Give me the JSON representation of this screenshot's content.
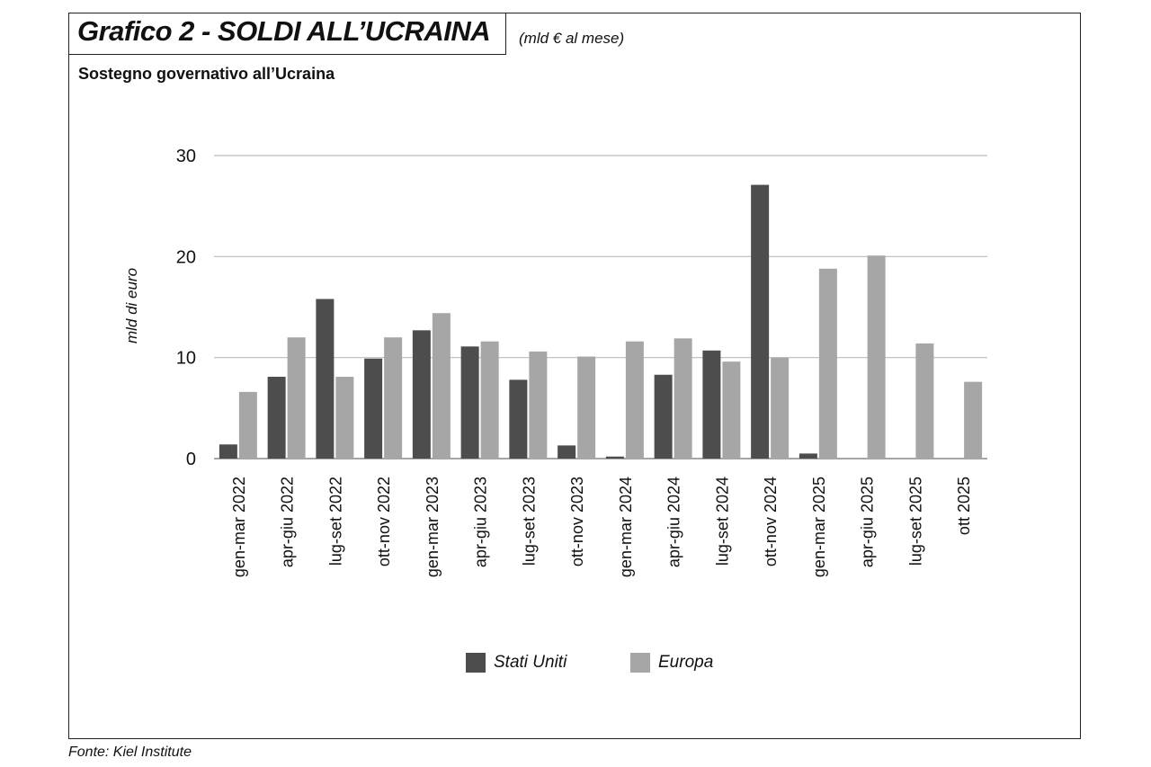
{
  "header": {
    "title": "Grafico 2 - SOLDI ALL’UCRAINA",
    "unit_note": "(mld € al mese)",
    "subtitle": "Sostegno governativo all’Ucraina"
  },
  "footer": {
    "source": "Fonte: Kiel Institute"
  },
  "colors": {
    "stati_uniti": "#4d4d4d",
    "europa": "#a6a6a6",
    "gridline": "#bcbcbc",
    "axis": "#888888"
  },
  "chart_data": {
    "type": "bar",
    "title": "Sostegno governativo all’Ucraina",
    "xlabel": "",
    "ylabel": "mld di euro",
    "ylim": [
      0,
      30
    ],
    "yticks": [
      0,
      10,
      20,
      30
    ],
    "grid": true,
    "legend_position": "bottom",
    "categories": [
      "gen-mar 2022",
      "apr-giu 2022",
      "lug-set 2022",
      "ott-nov 2022",
      "gen-mar 2023",
      "apr-giu 2023",
      "lug-set 2023",
      "ott-nov 2023",
      "gen-mar 2024",
      "apr-giu 2024",
      "lug-set 2024",
      "ott-nov 2024",
      "gen-mar 2025",
      "apr-giu 2025",
      "lug-set 2025",
      "ott 2025"
    ],
    "series": [
      {
        "name": "Stati Uniti",
        "color": "#4d4d4d",
        "values": [
          1.4,
          8.1,
          15.8,
          9.9,
          12.7,
          11.1,
          7.8,
          1.3,
          0.2,
          8.3,
          10.7,
          27.1,
          0.5,
          0,
          0,
          0
        ]
      },
      {
        "name": "Europa",
        "color": "#a6a6a6",
        "values": [
          6.6,
          12.0,
          8.1,
          12.0,
          14.4,
          11.6,
          10.6,
          10.1,
          11.6,
          11.9,
          9.6,
          10.0,
          18.8,
          20.1,
          11.4,
          7.6
        ]
      }
    ]
  }
}
